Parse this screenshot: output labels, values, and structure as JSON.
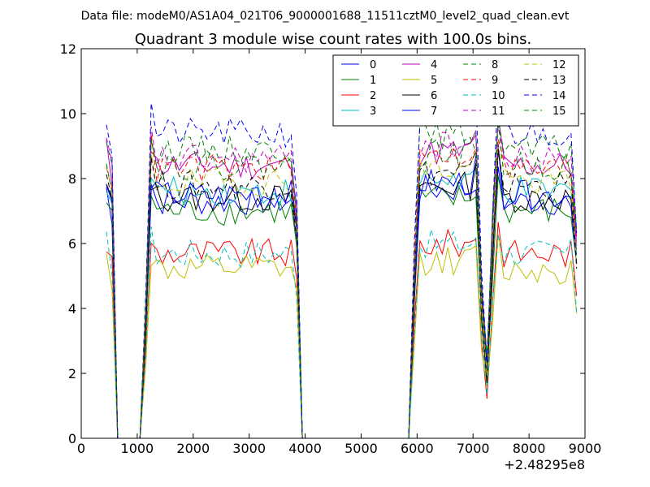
{
  "header": {
    "data_file": "Data file: modeM0/AS1A04_021T06_9000001688_11511cztM0_level2_quad_clean.evt"
  },
  "chart_data": {
    "type": "line",
    "title": "Quadrant 3 module wise count rates with 100.0s bins.",
    "xlabel": "",
    "ylabel": "",
    "x_offset_label": "+2.48295e8",
    "xlim": [
      0,
      9000
    ],
    "ylim": [
      0,
      12
    ],
    "xticks": [
      0,
      1000,
      2000,
      3000,
      4000,
      5000,
      6000,
      7000,
      8000,
      9000
    ],
    "yticks": [
      0,
      2,
      4,
      6,
      8,
      10,
      12
    ],
    "grid": false,
    "legend_position": "top-right",
    "legend_columns": 4,
    "x": [
      450,
      550,
      650,
      750,
      850,
      950,
      1050,
      1150,
      1250,
      1350,
      1450,
      1550,
      1650,
      1750,
      1850,
      1950,
      2050,
      2150,
      2250,
      2350,
      2450,
      2550,
      2650,
      2750,
      2850,
      2950,
      3050,
      3150,
      3250,
      3350,
      3450,
      3550,
      3650,
      3750,
      3850,
      3950,
      4050,
      4150,
      4250,
      4350,
      4450,
      4550,
      4650,
      4750,
      4850,
      4950,
      5050,
      5150,
      5250,
      5350,
      5450,
      5550,
      5650,
      5750,
      5850,
      5950,
      6050,
      6150,
      6250,
      6350,
      6450,
      6550,
      6650,
      6750,
      6850,
      6950,
      7050,
      7150,
      7250,
      7350,
      7450,
      7550,
      7650,
      7750,
      7850,
      7950,
      8050,
      8150,
      8250,
      8350,
      8450,
      8550,
      8650,
      8750,
      8850
    ],
    "series": [
      {
        "name": "0",
        "color": "#0000ff",
        "dash": "solid",
        "level": 7.3
      },
      {
        "name": "1",
        "color": "#008000",
        "dash": "solid",
        "level": 7.0
      },
      {
        "name": "2",
        "color": "#ff0000",
        "dash": "solid",
        "level": 5.7
      },
      {
        "name": "3",
        "color": "#00bfbf",
        "dash": "solid",
        "level": 7.6
      },
      {
        "name": "4",
        "color": "#bf00bf",
        "dash": "solid",
        "level": 8.4
      },
      {
        "name": "5",
        "color": "#bfbf00",
        "dash": "solid",
        "level": 5.2
      },
      {
        "name": "6",
        "color": "#000000",
        "dash": "solid",
        "level": 7.4
      },
      {
        "name": "7",
        "color": "#0000ff",
        "dash": "solid",
        "level": 7.5
      },
      {
        "name": "8",
        "color": "#008000",
        "dash": "dashed",
        "level": 8.9
      },
      {
        "name": "9",
        "color": "#ff0000",
        "dash": "dashed",
        "level": 8.3
      },
      {
        "name": "10",
        "color": "#00bfbf",
        "dash": "dashed",
        "level": 5.7
      },
      {
        "name": "11",
        "color": "#bf00bf",
        "dash": "dashed",
        "level": 8.6
      },
      {
        "name": "12",
        "color": "#bfbf00",
        "dash": "dashed",
        "level": 7.9
      },
      {
        "name": "13",
        "color": "#000000",
        "dash": "dashed",
        "level": 7.8
      },
      {
        "name": "14",
        "color": "#0000ff",
        "dash": "dashed",
        "level": 9.4
      },
      {
        "name": "15",
        "color": "#008000",
        "dash": "dashed",
        "level": 8.4
      }
    ]
  }
}
